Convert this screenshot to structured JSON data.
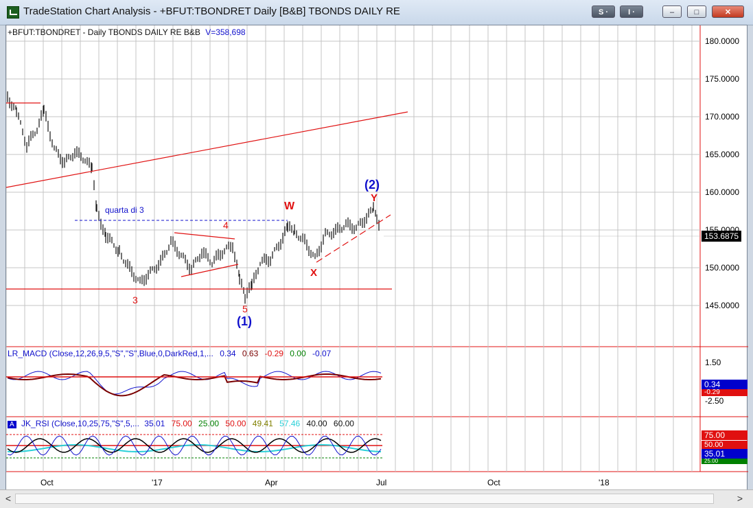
{
  "window": {
    "title": "TradeStation Chart Analysis - +BFUT:TBONDRET Daily [B&B] TBONDS DAILY RE",
    "buttons": {
      "s_label": "S ·",
      "i_label": "I ·",
      "minimize": "–",
      "maximize": "□",
      "close": "✕"
    }
  },
  "price_panel": {
    "header": "+BFUT:TBONDRET - Daily  TBONDS DAILY RE  B&B",
    "volume": "V=358,698",
    "axis_labels": [
      "180.0000",
      "175.0000",
      "170.0000",
      "165.0000",
      "160.0000",
      "155.0000",
      "150.0000",
      "145.0000"
    ],
    "last_price": "153.6875",
    "annotations": {
      "quarta": "quarta di 3",
      "w": "W",
      "y": "Y",
      "x": "X",
      "four": "4",
      "three": "3",
      "five": "5",
      "wave1": "(1)",
      "wave2": "(2)"
    }
  },
  "macd_panel": {
    "label": "LR_MACD (Close,12,26,9,5,\"S\",\"S\",Blue,0,DarkRed,1,...",
    "v1": "0.34",
    "v2": "0.63",
    "v3": "-0.29",
    "v4": "0.00",
    "v5": "-0.07",
    "axis_top": "1.50",
    "axis_bottom": "-2.50",
    "box_value": "0.34",
    "box_value2": "-0.29"
  },
  "rsi_panel": {
    "badge": "A",
    "label": "JK_RSI (Close,10,25,75,\"S\",5,...",
    "v1": "35.01",
    "v2": "75.00",
    "v3": "25.00",
    "v4": "50.00",
    "v5": "49.41",
    "v6": "57.46",
    "v7": "40.00",
    "v8": "60.00",
    "box_75": "75.00",
    "box_50": "50.00",
    "box_value": "35.01",
    "box_25": "25.00"
  },
  "x_axis": {
    "labels": [
      "Oct",
      "'17",
      "Apr",
      "Jul",
      "Oct",
      "'18"
    ]
  },
  "scrollbar": {
    "left": "<",
    "right": ">"
  },
  "colors": {
    "red": "#e01010",
    "blue": "#1010cc",
    "darkred": "#7a0000",
    "cyan": "#2ad0d8",
    "green": "#008000"
  }
}
